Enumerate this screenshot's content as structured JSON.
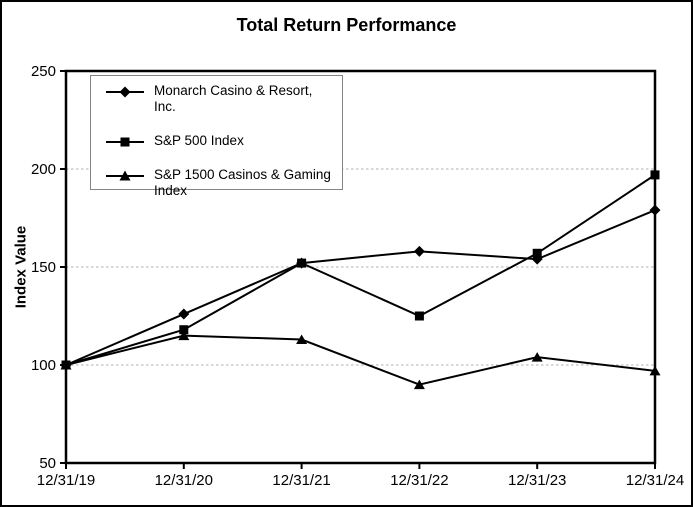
{
  "chart_data": {
    "type": "line",
    "title": "Total Return Performance",
    "xlabel": "",
    "ylabel": "Index Value",
    "x": [
      "12/31/19",
      "12/31/20",
      "12/31/21",
      "12/31/22",
      "12/31/23",
      "12/31/24"
    ],
    "ylim": [
      50,
      250
    ],
    "yticks": [
      50,
      100,
      150,
      200,
      250
    ],
    "gridlines": [
      100,
      150,
      200
    ],
    "grid_style": "dashed",
    "legend_position": "top-left-inside",
    "series": [
      {
        "name": "Monarch Casino & Resort, Inc.",
        "marker": "diamond",
        "values": [
          100,
          126,
          152,
          158,
          154,
          179
        ]
      },
      {
        "name": "S&P 500 Index",
        "marker": "square",
        "values": [
          100,
          118,
          152,
          125,
          157,
          197
        ]
      },
      {
        "name": "S&P 1500 Casinos & Gaming Index",
        "marker": "triangle",
        "values": [
          100,
          115,
          113,
          90,
          104,
          97
        ]
      }
    ],
    "colors": {
      "line": "#000000",
      "marker": "#000000",
      "grid": "#b0b0b0",
      "frame": "#000000",
      "background": "#ffffff",
      "legend_border": "#848484"
    }
  }
}
